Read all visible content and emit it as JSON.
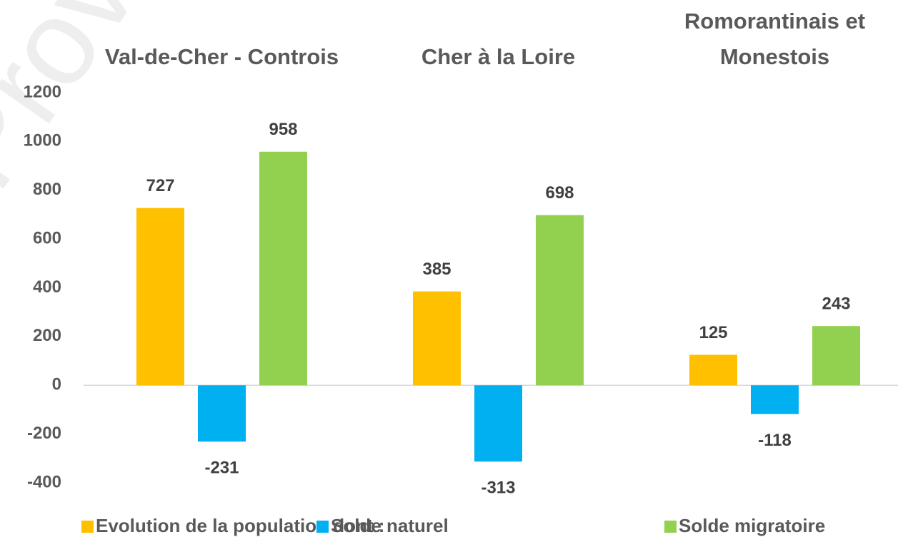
{
  "chart_data": {
    "type": "bar",
    "watermark": "Provisoire",
    "categories": [
      "Val-de-Cher - Controis",
      "Cher à la Loire",
      "Romorantinais et Monestois"
    ],
    "series": [
      {
        "name": "Evolution de la population dont :",
        "color": "#FFC000",
        "values": [
          727,
          385,
          125
        ]
      },
      {
        "name": "Solde naturel",
        "color": "#00B0F0",
        "values": [
          -231,
          -313,
          -118
        ]
      },
      {
        "name": "Solde migratoire",
        "color": "#92D050",
        "values": [
          958,
          698,
          243
        ]
      }
    ],
    "ylim": [
      -400,
      1200
    ],
    "yticks": [
      -400,
      -200,
      0,
      200,
      400,
      600,
      800,
      1000,
      1200
    ],
    "grid": false,
    "legend": "bottom"
  }
}
